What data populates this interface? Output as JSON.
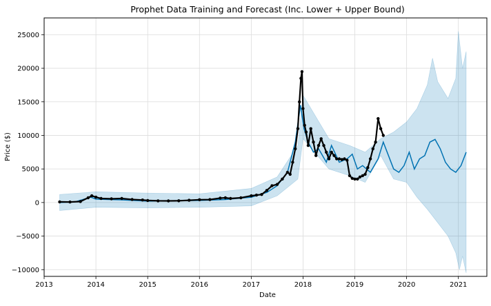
{
  "chart_data": {
    "type": "line",
    "title": "Prophet Data Training and Forecast (Inc. Lower + Upper Bound)",
    "xlabel": "Date",
    "ylabel": "Price ($)",
    "xlim": [
      2013.0,
      2021.55
    ],
    "ylim": [
      -11000,
      27500
    ],
    "x_ticks": [
      2013,
      2014,
      2015,
      2016,
      2017,
      2018,
      2019,
      2020,
      2021
    ],
    "x_tick_labels": [
      "2013",
      "2014",
      "2015",
      "2016",
      "2017",
      "2018",
      "2019",
      "2020",
      "2021"
    ],
    "y_ticks": [
      -10000,
      -5000,
      0,
      5000,
      10000,
      15000,
      20000,
      25000
    ],
    "y_tick_labels": [
      "−10000",
      "−5000",
      "0",
      "5000",
      "10000",
      "15000",
      "20000",
      "25000"
    ],
    "grid": true,
    "colors": {
      "forecast": "#0072B2",
      "band": "#0072B2",
      "actual": "#000000"
    },
    "series": [
      {
        "role": "yhat",
        "x": [
          2013.3,
          2013.6,
          2013.9,
          2014.0,
          2014.5,
          2015.0,
          2015.5,
          2016.0,
          2016.5,
          2017.0,
          2017.3,
          2017.5,
          2017.7,
          2017.85,
          2017.95,
          2018.02,
          2018.1,
          2018.2,
          2018.3,
          2018.45,
          2018.55,
          2018.7,
          2018.85,
          2018.95,
          2019.05,
          2019.15,
          2019.3,
          2019.45,
          2019.55,
          2019.65,
          2019.75,
          2019.85,
          2019.95,
          2020.05,
          2020.15,
          2020.25,
          2020.35,
          2020.45,
          2020.55,
          2020.65,
          2020.75,
          2020.85,
          2020.95,
          2021.05,
          2021.15
        ],
        "y": [
          0,
          100,
          800,
          500,
          400,
          200,
          250,
          300,
          450,
          800,
          1500,
          2500,
          4500,
          9000,
          14500,
          11000,
          9000,
          7500,
          8000,
          6000,
          8500,
          6000,
          6500,
          7200,
          5000,
          5500,
          4500,
          6500,
          9000,
          7000,
          5000,
          4500,
          5500,
          7500,
          5000,
          6500,
          7000,
          9000,
          9400,
          8000,
          6000,
          5000,
          4500,
          5500,
          7500
        ]
      },
      {
        "role": "yhat_lower",
        "x": [
          2013.3,
          2014.0,
          2015.0,
          2016.0,
          2017.0,
          2017.5,
          2017.9,
          2018.0,
          2018.5,
          2018.9,
          2019.2,
          2019.5,
          2019.75,
          2020.0,
          2020.2,
          2020.4,
          2020.6,
          2020.8,
          2020.95,
          2021.02,
          2021.08,
          2021.15
        ],
        "y": [
          -1200,
          -700,
          -800,
          -700,
          -500,
          1000,
          3500,
          9500,
          5000,
          4000,
          3000,
          7000,
          3500,
          3000,
          800,
          -1000,
          -3000,
          -5000,
          -7500,
          -10000,
          -8000,
          -10500
        ]
      },
      {
        "role": "yhat_upper",
        "x": [
          2013.3,
          2014.0,
          2015.0,
          2016.0,
          2017.0,
          2017.5,
          2017.9,
          2018.0,
          2018.5,
          2018.9,
          2019.2,
          2019.5,
          2019.75,
          2020.0,
          2020.2,
          2020.4,
          2020.5,
          2020.6,
          2020.8,
          2020.95,
          2021.0,
          2021.08,
          2021.15
        ],
        "y": [
          1200,
          1600,
          1400,
          1300,
          2100,
          3800,
          8500,
          16000,
          9500,
          8500,
          7500,
          9500,
          10500,
          12000,
          14000,
          17500,
          21500,
          18000,
          15500,
          18500,
          25500,
          20000,
          22500
        ]
      },
      {
        "role": "actual",
        "x": [
          2013.3,
          2013.5,
          2013.7,
          2013.85,
          2013.92,
          2014.0,
          2014.1,
          2014.3,
          2014.5,
          2014.7,
          2014.9,
          2015.0,
          2015.2,
          2015.4,
          2015.6,
          2015.8,
          2016.0,
          2016.2,
          2016.4,
          2016.5,
          2016.6,
          2016.8,
          2017.0,
          2017.1,
          2017.2,
          2017.3,
          2017.4,
          2017.5,
          2017.6,
          2017.7,
          2017.75,
          2017.8,
          2017.85,
          2017.9,
          2017.93,
          2017.96,
          2017.98,
          2018.0,
          2018.03,
          2018.06,
          2018.1,
          2018.15,
          2018.2,
          2018.25,
          2018.3,
          2018.35,
          2018.4,
          2018.45,
          2018.5,
          2018.55,
          2018.6,
          2018.65,
          2018.7,
          2018.75,
          2018.8,
          2018.85,
          2018.9,
          2018.95,
          2019.0,
          2019.05,
          2019.1,
          2019.15,
          2019.2,
          2019.25,
          2019.3,
          2019.35,
          2019.4,
          2019.45,
          2019.5,
          2019.55
        ],
        "y": [
          100,
          80,
          150,
          700,
          1000,
          800,
          600,
          550,
          600,
          450,
          380,
          300,
          250,
          240,
          260,
          330,
          420,
          440,
          650,
          700,
          600,
          700,
          1000,
          1100,
          1200,
          1800,
          2500,
          2700,
          3500,
          4500,
          4200,
          6000,
          8000,
          11000,
          15000,
          18500,
          19500,
          14000,
          11500,
          10500,
          8500,
          11000,
          9000,
          7000,
          8500,
          9500,
          8500,
          7500,
          6500,
          7500,
          7000,
          6500,
          6500,
          6400,
          6500,
          6300,
          4000,
          3600,
          3500,
          3500,
          3800,
          4000,
          4200,
          5200,
          6500,
          8000,
          9000,
          12500,
          11000,
          10000
        ]
      }
    ]
  }
}
